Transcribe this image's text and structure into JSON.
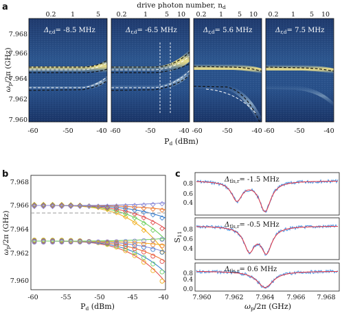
{
  "panel_letters": {
    "a": "a",
    "b": "b",
    "c": "c"
  },
  "panel_a": {
    "top_axis_label": "drive photon number, n",
    "top_axis_label_sub": "d",
    "top_ticks_wide": [
      "0.2",
      "1",
      "5"
    ],
    "top_ticks_narrow": [
      "0.2",
      "1",
      "5",
      "10"
    ],
    "y_label": "ω",
    "y_label_sub": "p",
    "y_label_tail": "/2π (GHz)",
    "y_ticks": [
      "7.968",
      "7.966",
      "7.964",
      "7.962",
      "7.960"
    ],
    "x_ticks": [
      "-60",
      "-50",
      "-40"
    ],
    "x_label": "P",
    "x_label_sub": "d",
    "x_label_tail": " (dBm)",
    "subpanels": [
      {
        "delta_sym": "Δ",
        "delta_sub": "r,d",
        "delta_val": "= -8.5 MHz"
      },
      {
        "delta_sym": "Δ",
        "delta_sub": "r,d",
        "delta_val": "= -6.5 MHz"
      },
      {
        "delta_sym": "Δ",
        "delta_sub": "r,d",
        "delta_val": "= 5.6 MHz"
      },
      {
        "delta_sym": "Δ",
        "delta_sub": "r,d",
        "delta_val": "= 7.5 MHz"
      }
    ]
  },
  "panel_b": {
    "y_label": "ω",
    "y_label_sub": "p",
    "y_label_tail": "/2π (GHz)",
    "y_ticks": [
      "7.968",
      "7.966",
      "7.964",
      "7.962",
      "7.960"
    ],
    "x_ticks": [
      "-60",
      "-55",
      "-50",
      "-45",
      "-40"
    ],
    "x_label": "P",
    "x_label_sub": "d",
    "x_label_tail": " (dBm)",
    "colors": [
      "#f0b020",
      "#6fd060",
      "#e35050",
      "#3a80d0",
      "#ee7a30",
      "#8a8ad8"
    ]
  },
  "panel_c": {
    "y_label": "S",
    "y_label_sub": "11",
    "x_label": "ω",
    "x_label_sub": "p",
    "x_label_tail": "/2π (GHz)",
    "x_ticks": [
      "7.960",
      "7.962",
      "7.964",
      "7.966",
      "7.968"
    ],
    "y_ticks": [
      "0.8",
      "0.6",
      "0.4",
      "0.2",
      "0.0"
    ],
    "subpanels": [
      {
        "delta_sym": "Δ",
        "delta_sub": "tls,r",
        "delta_val": "= -1.5 MHz"
      },
      {
        "delta_sym": "Δ",
        "delta_sub": "tls,r",
        "delta_val": "= -0.5 MHz"
      },
      {
        "delta_sym": "Δ",
        "delta_sub": "tls,r",
        "delta_val": "= 0.6 MHz"
      }
    ],
    "data_color": "#3a8ee6",
    "fit_color": "#e03a4a"
  }
}
